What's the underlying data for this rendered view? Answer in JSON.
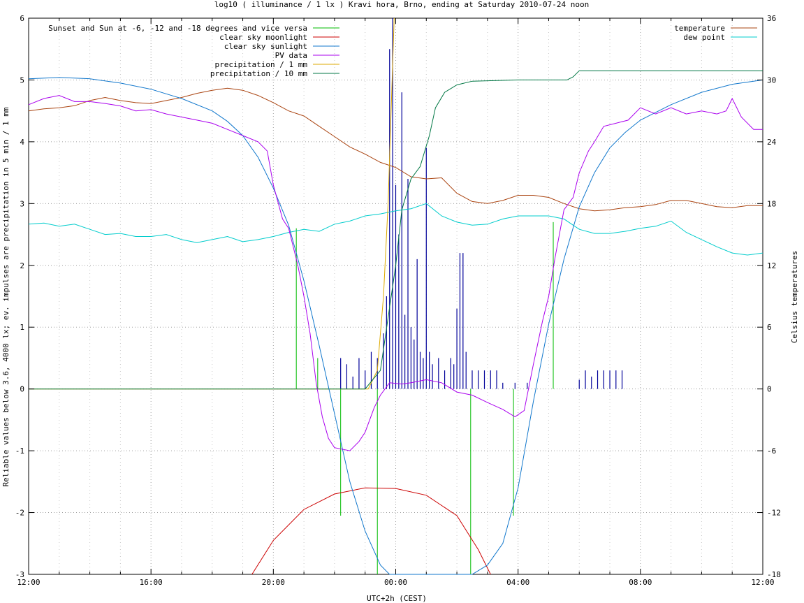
{
  "chart_data": {
    "type": "line",
    "title": "log10 ( illuminance / 1 lx ) Kravi hora, Brno, ending at Saturday 2010-07-24 noon",
    "xlabel": "UTC+2h (CEST)",
    "ylabel": "Reliable values below 3.6, 4000 lx; ev. impulses are precipitation in 5 min / 1 mm",
    "y2label": "Celsius temperatures",
    "xlim": [
      0,
      24
    ],
    "ylim": [
      -3,
      6
    ],
    "y2lim": [
      -18,
      36
    ],
    "xticks": [
      {
        "v": 0,
        "label": "12:00"
      },
      {
        "v": 4,
        "label": "16:00"
      },
      {
        "v": 8,
        "label": "20:00"
      },
      {
        "v": 12,
        "label": "00:00"
      },
      {
        "v": 16,
        "label": "04:00"
      },
      {
        "v": 20,
        "label": "08:00"
      },
      {
        "v": 24,
        "label": "12:00"
      }
    ],
    "yticks": [
      {
        "v": -3,
        "label": "-3"
      },
      {
        "v": -2,
        "label": "-2"
      },
      {
        "v": -1,
        "label": "-1"
      },
      {
        "v": 0,
        "label": "0"
      },
      {
        "v": 1,
        "label": "1"
      },
      {
        "v": 2,
        "label": "2"
      },
      {
        "v": 3,
        "label": "3"
      },
      {
        "v": 4,
        "label": "4"
      },
      {
        "v": 5,
        "label": "5"
      },
      {
        "v": 6,
        "label": "6"
      }
    ],
    "y2ticks": [
      {
        "v": -18,
        "label": "-18"
      },
      {
        "v": -12,
        "label": "-12"
      },
      {
        "v": -6,
        "label": "-6"
      },
      {
        "v": 0,
        "label": "0"
      },
      {
        "v": 6,
        "label": "6"
      },
      {
        "v": 12,
        "label": "12"
      },
      {
        "v": 18,
        "label": "18"
      },
      {
        "v": 24,
        "label": "24"
      },
      {
        "v": 30,
        "label": "30"
      },
      {
        "v": 36,
        "label": "36"
      }
    ],
    "grid": true,
    "legend_left": [
      {
        "name": "Sunset and Sun at -6, -12 and -18 degrees and vice versa",
        "color": "#00bb00"
      },
      {
        "name": "clear sky moonlight",
        "color": "#cc0000"
      },
      {
        "name": "clear sky sunlight",
        "color": "#1177cc"
      },
      {
        "name": "PV data",
        "color": "#aa00ee"
      },
      {
        "name": "precipitation / 1 mm",
        "color": "#ddaa00"
      },
      {
        "name": "precipitation / 10 mm",
        "color": "#007744"
      }
    ],
    "legend_right": [
      {
        "name": "temperature",
        "color": "#aa4411"
      },
      {
        "name": "dew point",
        "color": "#00cccc"
      }
    ],
    "sun_event_lines": [
      {
        "x": 8.75,
        "y": 2.6
      },
      {
        "x": 9.45,
        "y": 0.5
      },
      {
        "x": 10.2,
        "y": -2.05
      },
      {
        "x": 10.4,
        "y": 0.1
      },
      {
        "x": 11.4,
        "y": -3.0
      },
      {
        "x": 14.45,
        "y": -3.0
      },
      {
        "x": 15.65,
        "y": 0.0
      },
      {
        "x": 15.85,
        "y": -2.05
      },
      {
        "x": 17.15,
        "y": 2.7
      }
    ],
    "moonlight": [
      [
        7.3,
        -3.0
      ],
      [
        8.0,
        -2.45
      ],
      [
        9.0,
        -1.95
      ],
      [
        10.0,
        -1.7
      ],
      [
        11.0,
        -1.6
      ],
      [
        12.0,
        -1.61
      ],
      [
        13.0,
        -1.72
      ],
      [
        14.0,
        -2.05
      ],
      [
        14.7,
        -2.6
      ],
      [
        15.1,
        -3.0
      ]
    ],
    "sunlight": [
      [
        0,
        5.02
      ],
      [
        1,
        5.04
      ],
      [
        2,
        5.02
      ],
      [
        3,
        4.95
      ],
      [
        4,
        4.85
      ],
      [
        5,
        4.7
      ],
      [
        6,
        4.5
      ],
      [
        6.5,
        4.33
      ],
      [
        7,
        4.1
      ],
      [
        7.5,
        3.75
      ],
      [
        8,
        3.25
      ],
      [
        8.5,
        2.65
      ],
      [
        9,
        1.75
      ],
      [
        9.5,
        0.7
      ],
      [
        10,
        -0.4
      ],
      [
        10.5,
        -1.5
      ],
      [
        11,
        -2.3
      ],
      [
        11.5,
        -2.85
      ],
      [
        11.8,
        -3.0
      ],
      [
        14.5,
        -3.0
      ],
      [
        15,
        -2.85
      ],
      [
        15.5,
        -2.5
      ],
      [
        16,
        -1.6
      ],
      [
        16.5,
        -0.2
      ],
      [
        17,
        1.05
      ],
      [
        17.5,
        2.1
      ],
      [
        18,
        2.95
      ],
      [
        18.5,
        3.5
      ],
      [
        19,
        3.9
      ],
      [
        19.5,
        4.15
      ],
      [
        20,
        4.35
      ],
      [
        21,
        4.6
      ],
      [
        22,
        4.8
      ],
      [
        23,
        4.93
      ],
      [
        24,
        5.0
      ]
    ],
    "pv": [
      [
        0,
        4.6
      ],
      [
        0.5,
        4.7
      ],
      [
        1,
        4.75
      ],
      [
        1.5,
        4.65
      ],
      [
        2,
        4.65
      ],
      [
        2.5,
        4.62
      ],
      [
        3,
        4.58
      ],
      [
        3.5,
        4.5
      ],
      [
        4,
        4.52
      ],
      [
        4.5,
        4.45
      ],
      [
        5,
        4.4
      ],
      [
        5.5,
        4.35
      ],
      [
        6,
        4.3
      ],
      [
        6.5,
        4.2
      ],
      [
        7,
        4.1
      ],
      [
        7.5,
        4.0
      ],
      [
        7.8,
        3.85
      ],
      [
        8,
        3.3
      ],
      [
        8.3,
        2.75
      ],
      [
        8.5,
        2.6
      ],
      [
        8.8,
        2.0
      ],
      [
        9,
        1.5
      ],
      [
        9.2,
        0.9
      ],
      [
        9.4,
        0.1
      ],
      [
        9.6,
        -0.45
      ],
      [
        9.8,
        -0.8
      ],
      [
        10,
        -0.95
      ],
      [
        10.5,
        -1.0
      ],
      [
        10.8,
        -0.85
      ],
      [
        11,
        -0.7
      ],
      [
        11.3,
        -0.3
      ],
      [
        11.5,
        -0.1
      ],
      [
        11.8,
        0.1
      ],
      [
        12.2,
        0.08
      ],
      [
        12.5,
        0.1
      ],
      [
        13,
        0.15
      ],
      [
        13.5,
        0.1
      ],
      [
        14,
        -0.05
      ],
      [
        14.5,
        -0.1
      ],
      [
        15,
        -0.22
      ],
      [
        15.5,
        -0.33
      ],
      [
        15.9,
        -0.45
      ],
      [
        16.2,
        -0.35
      ],
      [
        16.5,
        0.4
      ],
      [
        16.8,
        1.1
      ],
      [
        17,
        1.5
      ],
      [
        17.2,
        2.1
      ],
      [
        17.5,
        2.9
      ],
      [
        17.8,
        3.1
      ],
      [
        18,
        3.5
      ],
      [
        18.3,
        3.85
      ],
      [
        18.5,
        4.0
      ],
      [
        18.8,
        4.25
      ],
      [
        19.2,
        4.3
      ],
      [
        19.6,
        4.35
      ],
      [
        20,
        4.55
      ],
      [
        20.5,
        4.45
      ],
      [
        21,
        4.55
      ],
      [
        21.5,
        4.45
      ],
      [
        22,
        4.5
      ],
      [
        22.5,
        4.45
      ],
      [
        22.8,
        4.5
      ],
      [
        23,
        4.7
      ],
      [
        23.3,
        4.4
      ],
      [
        23.7,
        4.2
      ],
      [
        24,
        4.2
      ]
    ],
    "precipitation_1mm": [
      [
        0,
        0
      ],
      [
        11.1,
        0
      ],
      [
        11.4,
        0.3
      ],
      [
        11.6,
        1.5
      ],
      [
        11.75,
        3.0
      ],
      [
        11.85,
        4.5
      ],
      [
        11.95,
        6.0
      ]
    ],
    "precipitation_10mm": [
      [
        0,
        0
      ],
      [
        11.0,
        0
      ],
      [
        11.5,
        0.3
      ],
      [
        12.0,
        2.0
      ],
      [
        12.2,
        2.9
      ],
      [
        12.5,
        3.4
      ],
      [
        12.8,
        3.6
      ],
      [
        13.1,
        4.1
      ],
      [
        13.3,
        4.55
      ],
      [
        13.6,
        4.8
      ],
      [
        14,
        4.92
      ],
      [
        14.5,
        4.98
      ],
      [
        16,
        5.0
      ],
      [
        17,
        5.0
      ],
      [
        17.6,
        5.0
      ],
      [
        17.8,
        5.05
      ],
      [
        18,
        5.15
      ],
      [
        20,
        5.15
      ],
      [
        24,
        5.15
      ]
    ],
    "precip_impulses": [
      {
        "x": 10.2,
        "y": 0.5
      },
      {
        "x": 10.4,
        "y": 0.4
      },
      {
        "x": 10.6,
        "y": 0.2
      },
      {
        "x": 10.8,
        "y": 0.5
      },
      {
        "x": 11.0,
        "y": 0.3
      },
      {
        "x": 11.2,
        "y": 0.6
      },
      {
        "x": 11.4,
        "y": 0.5
      },
      {
        "x": 11.6,
        "y": 0.9
      },
      {
        "x": 11.7,
        "y": 1.5
      },
      {
        "x": 11.8,
        "y": 5.5
      },
      {
        "x": 11.9,
        "y": 6.0
      },
      {
        "x": 12.0,
        "y": 3.3
      },
      {
        "x": 12.1,
        "y": 2.5
      },
      {
        "x": 12.2,
        "y": 4.8
      },
      {
        "x": 12.3,
        "y": 1.2
      },
      {
        "x": 12.4,
        "y": 3.4
      },
      {
        "x": 12.5,
        "y": 1.0
      },
      {
        "x": 12.6,
        "y": 0.8
      },
      {
        "x": 12.7,
        "y": 2.1
      },
      {
        "x": 12.8,
        "y": 0.6
      },
      {
        "x": 12.9,
        "y": 0.5
      },
      {
        "x": 13.0,
        "y": 3.9
      },
      {
        "x": 13.1,
        "y": 0.6
      },
      {
        "x": 13.2,
        "y": 0.4
      },
      {
        "x": 13.4,
        "y": 0.5
      },
      {
        "x": 13.6,
        "y": 0.3
      },
      {
        "x": 13.8,
        "y": 0.5
      },
      {
        "x": 13.9,
        "y": 0.4
      },
      {
        "x": 14.0,
        "y": 1.3
      },
      {
        "x": 14.1,
        "y": 2.2
      },
      {
        "x": 14.2,
        "y": 2.2
      },
      {
        "x": 14.3,
        "y": 0.6
      },
      {
        "x": 14.5,
        "y": 0.3
      },
      {
        "x": 14.7,
        "y": 0.3
      },
      {
        "x": 14.9,
        "y": 0.3
      },
      {
        "x": 15.1,
        "y": 0.3
      },
      {
        "x": 15.3,
        "y": 0.3
      },
      {
        "x": 15.5,
        "y": 0.1
      },
      {
        "x": 15.9,
        "y": 0.1
      },
      {
        "x": 16.3,
        "y": 0.1
      },
      {
        "x": 18.0,
        "y": 0.15
      },
      {
        "x": 18.2,
        "y": 0.3
      },
      {
        "x": 18.4,
        "y": 0.2
      },
      {
        "x": 18.6,
        "y": 0.3
      },
      {
        "x": 18.8,
        "y": 0.3
      },
      {
        "x": 19.0,
        "y": 0.3
      },
      {
        "x": 19.2,
        "y": 0.3
      },
      {
        "x": 19.4,
        "y": 0.3
      }
    ],
    "temperature": [
      [
        0,
        27.0
      ],
      [
        0.5,
        27.2
      ],
      [
        1,
        27.3
      ],
      [
        1.5,
        27.5
      ],
      [
        2,
        28.0
      ],
      [
        2.5,
        28.3
      ],
      [
        3,
        28.0
      ],
      [
        3.5,
        27.8
      ],
      [
        4,
        27.7
      ],
      [
        4.5,
        28.0
      ],
      [
        5,
        28.3
      ],
      [
        5.5,
        28.7
      ],
      [
        6,
        29.0
      ],
      [
        6.5,
        29.2
      ],
      [
        7,
        29.0
      ],
      [
        7.5,
        28.5
      ],
      [
        8,
        27.8
      ],
      [
        8.5,
        27.0
      ],
      [
        9,
        26.5
      ],
      [
        9.5,
        25.5
      ],
      [
        10,
        24.5
      ],
      [
        10.5,
        23.5
      ],
      [
        11,
        22.8
      ],
      [
        11.5,
        22.0
      ],
      [
        12,
        21.5
      ],
      [
        12.5,
        20.6
      ],
      [
        13,
        20.4
      ],
      [
        13.5,
        20.5
      ],
      [
        14,
        19.0
      ],
      [
        14.5,
        18.2
      ],
      [
        15,
        18.0
      ],
      [
        15.5,
        18.3
      ],
      [
        16,
        18.8
      ],
      [
        16.5,
        18.8
      ],
      [
        17,
        18.6
      ],
      [
        17.5,
        18.0
      ],
      [
        18,
        17.5
      ],
      [
        18.5,
        17.3
      ],
      [
        19,
        17.4
      ],
      [
        19.5,
        17.6
      ],
      [
        20,
        17.7
      ],
      [
        20.5,
        17.9
      ],
      [
        21,
        18.3
      ],
      [
        21.5,
        18.3
      ],
      [
        22,
        18.0
      ],
      [
        22.5,
        17.7
      ],
      [
        23,
        17.6
      ],
      [
        23.5,
        17.8
      ],
      [
        24,
        17.8
      ]
    ],
    "dew_point": [
      [
        0,
        16.0
      ],
      [
        0.5,
        16.1
      ],
      [
        1,
        15.8
      ],
      [
        1.5,
        16.0
      ],
      [
        2,
        15.5
      ],
      [
        2.5,
        15.0
      ],
      [
        3,
        15.1
      ],
      [
        3.5,
        14.8
      ],
      [
        4,
        14.8
      ],
      [
        4.5,
        15.0
      ],
      [
        5,
        14.5
      ],
      [
        5.5,
        14.2
      ],
      [
        6,
        14.5
      ],
      [
        6.5,
        14.8
      ],
      [
        7,
        14.3
      ],
      [
        7.5,
        14.5
      ],
      [
        8,
        14.8
      ],
      [
        8.5,
        15.2
      ],
      [
        9,
        15.5
      ],
      [
        9.5,
        15.3
      ],
      [
        10,
        16.0
      ],
      [
        10.5,
        16.3
      ],
      [
        11,
        16.8
      ],
      [
        11.5,
        17.0
      ],
      [
        12,
        17.3
      ],
      [
        12.5,
        17.5
      ],
      [
        13,
        18.0
      ],
      [
        13.5,
        16.8
      ],
      [
        14,
        16.2
      ],
      [
        14.5,
        15.9
      ],
      [
        15,
        16.0
      ],
      [
        15.5,
        16.5
      ],
      [
        16,
        16.8
      ],
      [
        16.5,
        16.8
      ],
      [
        17,
        16.8
      ],
      [
        17.5,
        16.5
      ],
      [
        18,
        15.5
      ],
      [
        18.5,
        15.1
      ],
      [
        19,
        15.1
      ],
      [
        19.5,
        15.3
      ],
      [
        20,
        15.6
      ],
      [
        20.5,
        15.8
      ],
      [
        21,
        16.3
      ],
      [
        21.5,
        15.2
      ],
      [
        22,
        14.5
      ],
      [
        22.5,
        13.8
      ],
      [
        23,
        13.2
      ],
      [
        23.5,
        13.0
      ],
      [
        24,
        13.2
      ]
    ]
  }
}
